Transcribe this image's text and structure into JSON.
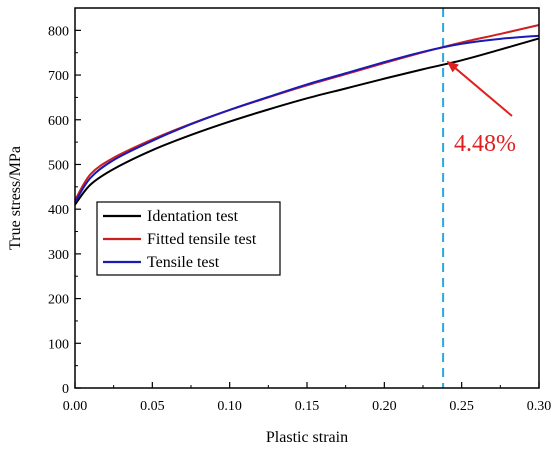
{
  "chart_data": {
    "type": "line",
    "title": "",
    "xlabel": "Plastic strain",
    "ylabel": "True stress/MPa",
    "xlim": [
      0.0,
      0.3
    ],
    "ylim": [
      0,
      850
    ],
    "x_ticks": [
      0.0,
      0.05,
      0.1,
      0.15,
      0.2,
      0.25,
      0.3
    ],
    "x_tick_labels": [
      "0.00",
      "0.05",
      "0.10",
      "0.15",
      "0.20",
      "0.25",
      "0.30"
    ],
    "y_ticks": [
      0,
      100,
      200,
      300,
      400,
      500,
      600,
      700,
      800
    ],
    "y_tick_labels": [
      "0",
      "100",
      "200",
      "300",
      "400",
      "500",
      "600",
      "700",
      "800"
    ],
    "grid": false,
    "legend_position": "middle-left",
    "x": [
      0.0,
      0.01,
      0.025,
      0.05,
      0.075,
      0.1,
      0.125,
      0.15,
      0.175,
      0.2,
      0.225,
      0.25,
      0.275,
      0.3
    ],
    "series": [
      {
        "name": "Identation test",
        "color": "#000000",
        "values": [
          410,
          455,
          490,
          532,
          566,
          596,
          623,
          648,
          670,
          692,
          713,
          733,
          757,
          782
        ]
      },
      {
        "name": "Fitted tensile test",
        "color": "#cc1f1f",
        "values": [
          420,
          478,
          515,
          556,
          591,
          622,
          650,
          677,
          702,
          727,
          751,
          773,
          792,
          812
        ]
      },
      {
        "name": "Tensile test",
        "color": "#1a1ab8",
        "values": [
          415,
          470,
          510,
          553,
          590,
          622,
          651,
          679,
          704,
          729,
          752,
          770,
          781,
          788
        ]
      }
    ],
    "reference_line": {
      "x": 0.238,
      "color": "#2aa7e0",
      "style": "dashed"
    },
    "annotation": {
      "text": "4.48%",
      "color": "#e02020",
      "arrow_target": {
        "x": 0.238,
        "y": 738
      }
    }
  }
}
